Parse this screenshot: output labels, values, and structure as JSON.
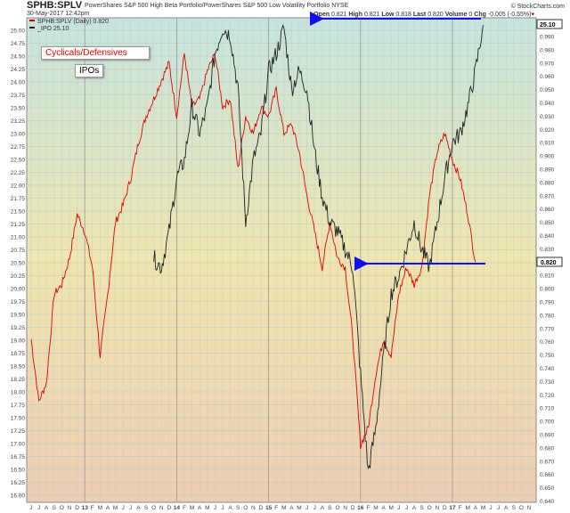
{
  "header": {
    "symbol": "SPHB:SPLV",
    "description": "PowerShares S&P 500 High Beta Portfolio/PowerShares S&P 500 Low Volatility Portfolio",
    "exchange": "NYSE",
    "date": "30-May-2017 12:42pm",
    "source": "© StockCharts.com",
    "open_label": "Open",
    "open": "0.821",
    "high_label": "High",
    "high": "0.821",
    "low_label": "Low",
    "low": "0.818",
    "last_label": "Last",
    "last": "0.820",
    "volume_label": "Volume",
    "volume": "0",
    "chg_label": "Chg",
    "chg": "-0.005 (-0.55%)"
  },
  "annotations": {
    "cyclicals": "Cyclicals/Defensives",
    "ipos": "IPOs"
  },
  "chart_data": {
    "type": "line",
    "legend": [
      {
        "name": "SPHB:SPLV (Daily) 0.820",
        "color": "#e00000"
      },
      {
        "name": "_IPO 25.10",
        "color": "#222222"
      }
    ],
    "x_ticks": [
      "J",
      "J",
      "A",
      "S",
      "O",
      "N",
      "D",
      "13",
      "F",
      "M",
      "A",
      "M",
      "J",
      "J",
      "A",
      "S",
      "O",
      "N",
      "D",
      "14",
      "F",
      "M",
      "A",
      "M",
      "J",
      "J",
      "A",
      "S",
      "O",
      "N",
      "D",
      "15",
      "F",
      "M",
      "A",
      "M",
      "J",
      "J",
      "A",
      "S",
      "O",
      "N",
      "D",
      "16",
      "F",
      "M",
      "A",
      "M",
      "J",
      "J",
      "A",
      "S",
      "O",
      "N",
      "D",
      "17",
      "F",
      "M",
      "A",
      "M",
      "J",
      "J",
      "A",
      "S",
      "O",
      "N"
    ],
    "left_axis": {
      "min": 16.0,
      "max": 25.0,
      "step": 0.25,
      "series": "_IPO"
    },
    "right_axis": {
      "min": 0.64,
      "max": 0.99,
      "step": 0.01,
      "series": "SPHB:SPLV"
    },
    "last_values": {
      "left": "25.10",
      "right": "0.820"
    },
    "series": [
      {
        "name": "SPHB:SPLV",
        "axis": "right",
        "color": "#e00000",
        "start": "2012-06",
        "end": "2017-05",
        "values": [
          0.762,
          0.715,
          0.729,
          0.796,
          0.803,
          0.823,
          0.856,
          0.843,
          0.816,
          0.749,
          0.796,
          0.85,
          0.863,
          0.883,
          0.91,
          0.93,
          0.943,
          0.957,
          0.97,
          0.93,
          0.977,
          0.937,
          0.943,
          0.964,
          0.977,
          0.937,
          0.943,
          0.89,
          0.93,
          0.917,
          0.937,
          0.93,
          0.95,
          0.917,
          0.924,
          0.903,
          0.87,
          0.843,
          0.816,
          0.85,
          0.823,
          0.816,
          0.762,
          0.682,
          0.695,
          0.736,
          0.762,
          0.749,
          0.796,
          0.816,
          0.803,
          0.816,
          0.87,
          0.903,
          0.917,
          0.897,
          0.883,
          0.856,
          0.82
        ]
      },
      {
        "name": "_IPO",
        "axis": "left",
        "color": "#222222",
        "start": "2013-10",
        "end": "2017-05",
        "values": [
          20.59,
          20.41,
          21.1,
          22.14,
          22.48,
          23.52,
          23.0,
          23.52,
          24.55,
          25.05,
          24.9,
          23.86,
          21.28,
          22.48,
          23.0,
          24.21,
          24.55,
          25.05,
          23.86,
          24.21,
          23.86,
          22.66,
          21.79,
          21.28,
          21.1,
          20.76,
          20.41,
          18.34,
          16.45,
          17.31,
          18.69,
          19.9,
          20.24,
          20.76,
          21.28,
          20.76,
          20.41,
          21.28,
          22.14,
          22.83,
          23.0,
          23.52,
          24.21,
          25.1
        ]
      }
    ]
  }
}
